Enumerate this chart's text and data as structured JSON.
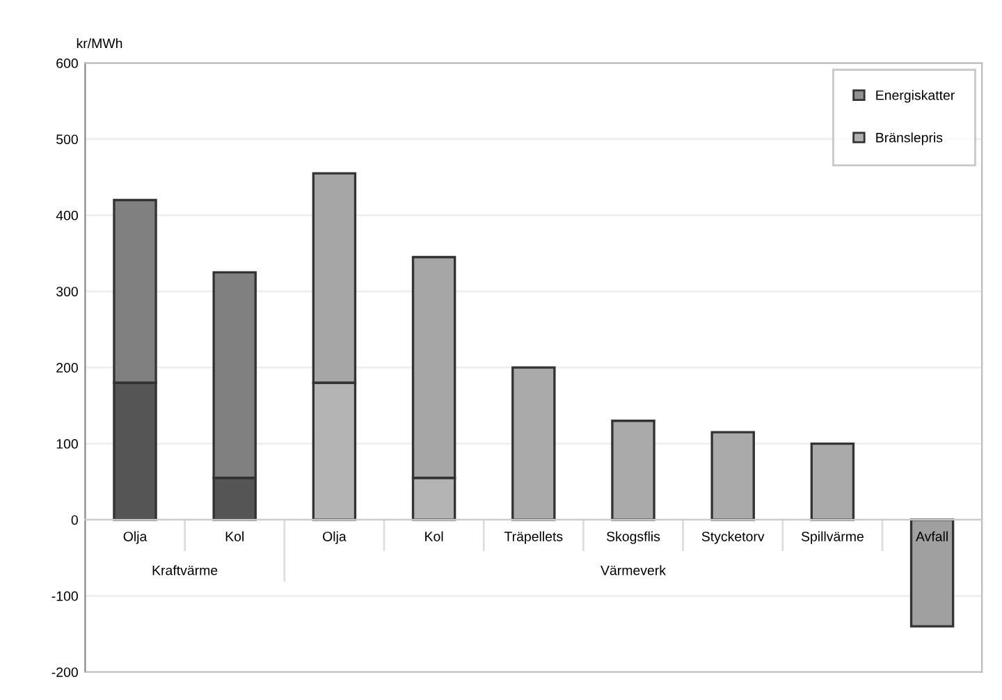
{
  "chart_data": {
    "type": "bar",
    "stacked": true,
    "ylabel": "kr/MWh",
    "categories": [
      "Olja",
      "Kol",
      "Olja",
      "Kol",
      "Träpellets",
      "Skogsflis",
      "Stycketorv",
      "Spillvärme",
      "Avfall"
    ],
    "series": [
      {
        "name": "Bränslepris",
        "color": "#b0b0b0",
        "colors": [
          "#555555",
          "#555555",
          "#b4b4b4",
          "#b4b4b4",
          "#aaaaaa",
          "#aaaaaa",
          "#aaaaaa",
          "#aaaaaa",
          "#a0a0a0"
        ],
        "values": [
          180,
          55,
          180,
          55,
          200,
          130,
          115,
          100,
          -140
        ]
      },
      {
        "name": "Energiskatter",
        "color": "#909090",
        "colors": [
          "#808080",
          "#808080",
          "#a6a6a6",
          "#a6a6a6",
          null,
          null,
          null,
          null,
          null
        ],
        "values": [
          240,
          270,
          275,
          290,
          null,
          null,
          null,
          null,
          null
        ]
      }
    ],
    "ylim": [
      -200,
      600
    ],
    "yticks": [
      -200,
      -100,
      0,
      100,
      200,
      300,
      400,
      500,
      600
    ],
    "grid": "y",
    "legend": "top right",
    "annotations": [
      "Kraftvärme",
      "Värmeverk"
    ]
  }
}
